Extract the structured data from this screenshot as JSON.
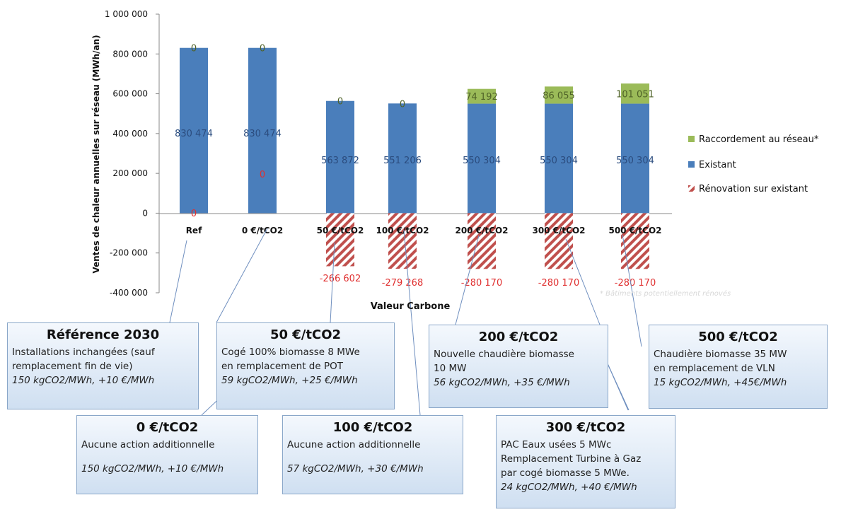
{
  "chart_data": {
    "type": "bar",
    "stacked": true,
    "categories": [
      "Ref",
      "0 €/tCO2",
      "50 €/tCO2",
      "100 €/tCO2",
      "200 €/tCO2",
      "300 €/tCO2",
      "500 €/tCO2"
    ],
    "series": [
      {
        "name": "Existant",
        "color": "#4a7ebb",
        "values": [
          830474,
          830474,
          563872,
          551206,
          550304,
          550304,
          550304
        ],
        "labels": [
          "830 474",
          "830 474",
          "563 872",
          "551 206",
          "550 304",
          "550 304",
          "550 304"
        ]
      },
      {
        "name": "Raccordement au réseau*",
        "color": "#9bbb59",
        "values": [
          0,
          0,
          0,
          0,
          74192,
          86055,
          101051
        ],
        "labels": [
          "0",
          "0",
          "0",
          "0",
          "74 192",
          "86 055",
          "101 051"
        ]
      },
      {
        "name": "Rénovation sur existant",
        "color": "#c0504d",
        "pattern": "hatched",
        "values": [
          0,
          0,
          -266602,
          -279268,
          -280170,
          -280170,
          -280170
        ],
        "labels": [
          "0",
          "0",
          "-266 602",
          "-279 268",
          "-280 170",
          "-280 170",
          "-280 170"
        ]
      }
    ],
    "ylim": [
      -400000,
      1000000
    ],
    "yticks": [
      1000000,
      800000,
      600000,
      400000,
      200000,
      0,
      -200000,
      -400000
    ],
    "ytick_labels": [
      "1 000 000",
      "800 000",
      "600 000",
      "400 000",
      "200 000",
      "0",
      "-200 000",
      "-400 000"
    ],
    "ylabel": "Ventes de chaleur annuelles sur réseau (MWh/an)",
    "xlabel": "Valeur Carbone",
    "legend_position": "right",
    "footnote": "* Bâtiments potentiellement rénovés"
  },
  "scenarios": [
    {
      "cat": 0,
      "title": "Référence 2030",
      "lines": [
        "Installations inchangées (sauf",
        "remplacement fin de vie)"
      ],
      "footer": "150 kgCO2/MWh, +10 €/MWh"
    },
    {
      "cat": 1,
      "title": "0 €/tCO2",
      "lines": [
        "Aucune action additionnelle",
        ""
      ],
      "footer": "150 kgCO2/MWh, +10 €/MWh"
    },
    {
      "cat": 2,
      "title": "50 €/tCO2",
      "lines": [
        "Cogé 100% biomasse 8 MWe",
        "en remplacement de POT"
      ],
      "footer": "59 kgCO2/MWh, +25 €/MWh"
    },
    {
      "cat": 3,
      "title": "100 €/tCO2",
      "lines": [
        "Aucune action additionnelle",
        ""
      ],
      "footer": "57 kgCO2/MWh, +30 €/MWh"
    },
    {
      "cat": 4,
      "title": "200 €/tCO2",
      "lines": [
        "Nouvelle chaudière biomasse",
        "10 MW"
      ],
      "footer": "56 kgCO2/MWh, +35 €/MWh"
    },
    {
      "cat": 5,
      "title": "300 €/tCO2",
      "lines": [
        "PAC Eaux usées 5 MWc",
        "Remplacement Turbine à Gaz",
        "par cogé biomasse 5 MWe."
      ],
      "footer": "24 kgCO2/MWh, +40 €/MWh"
    },
    {
      "cat": 6,
      "title": "500 €/tCO2",
      "lines": [
        "Chaudière biomasse 35 MW",
        "en remplacement de VLN"
      ],
      "footer": "15 kgCO2/MWh, +45€/MWh"
    }
  ]
}
